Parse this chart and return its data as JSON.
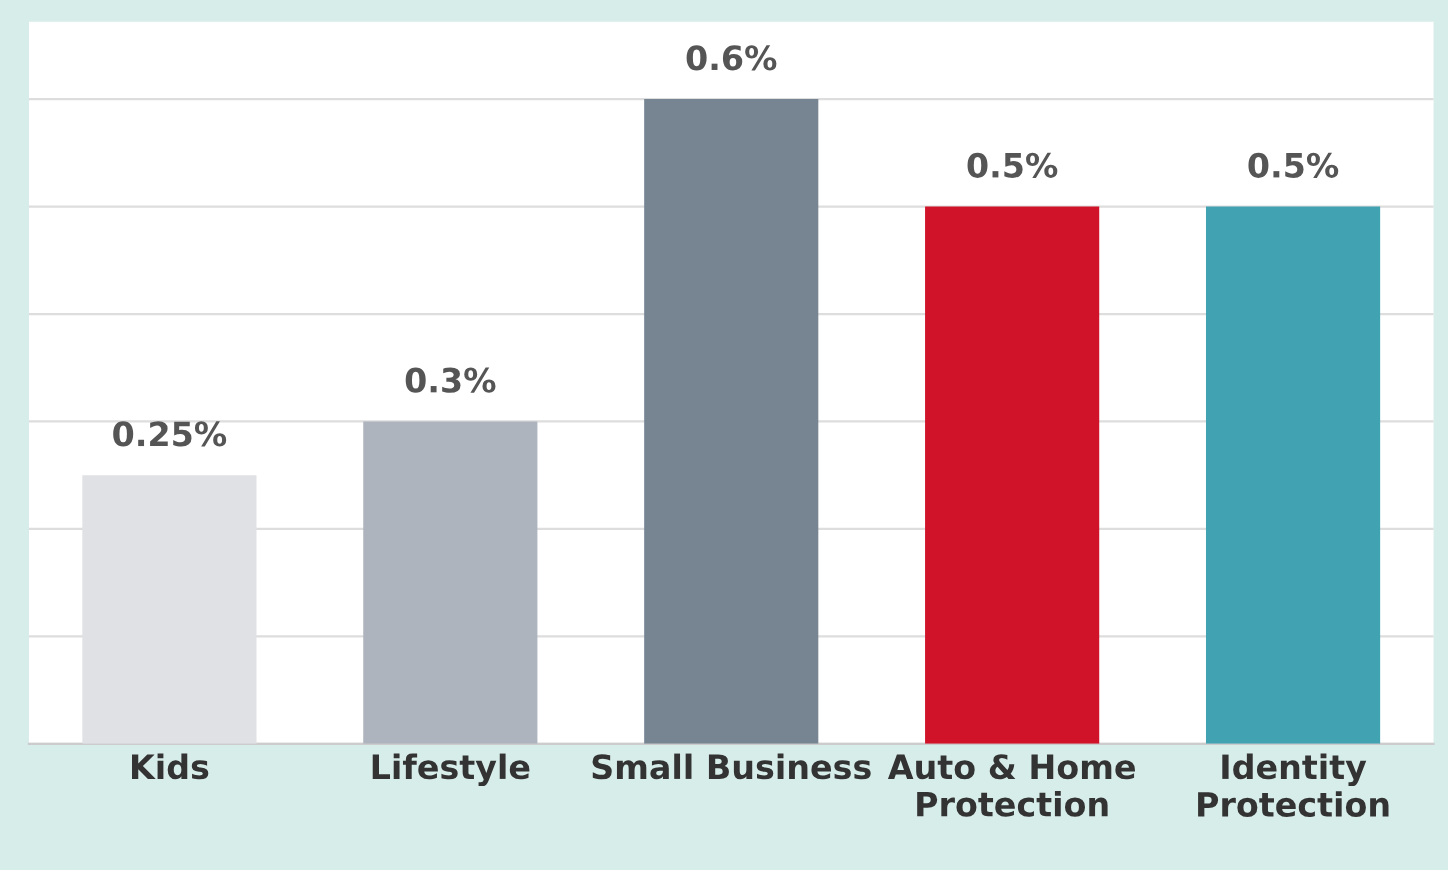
{
  "chart_data": {
    "type": "bar",
    "categories": [
      "Kids",
      "Lifestyle",
      "Small Business",
      "Auto & Home\nProtection",
      "Identity\nProtection"
    ],
    "values": [
      0.25,
      0.3,
      0.6,
      0.5,
      0.5
    ],
    "value_labels": [
      "0.25%",
      "0.3%",
      "0.6%",
      "0.5%",
      "0.5%"
    ],
    "colors": [
      "#e0e1e5",
      "#adb4bd",
      "#778592",
      "#d01329",
      "#41a2b2"
    ],
    "grid": "y",
    "tick_labels": "x"
  }
}
